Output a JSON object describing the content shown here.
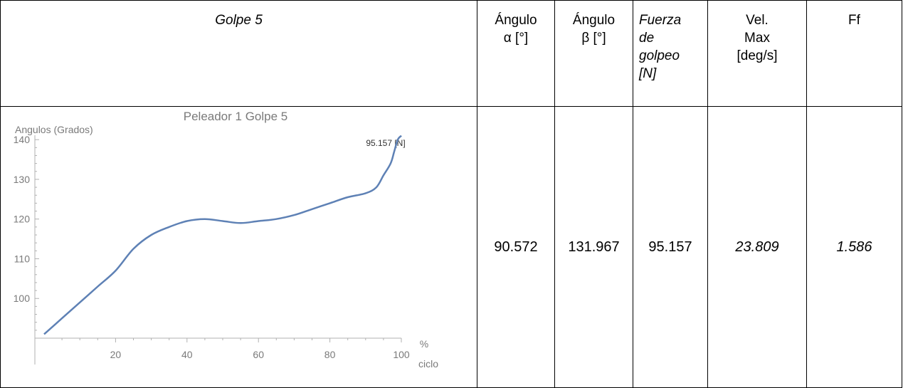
{
  "table": {
    "headers": {
      "golpe": "Golpe 5",
      "alpha_line1": "Ángulo",
      "alpha_line2": "α [°]",
      "beta_line1": "Ángulo",
      "beta_line2": "β [°]",
      "fuerza_line1": "Fuerza",
      "fuerza_line2": "de",
      "fuerza_line3": "golpeo",
      "fuerza_line4": "[N]",
      "vel_line1": "Vel.",
      "vel_line2": "Max",
      "vel_line3": "[deg/s]",
      "ff": "Ff"
    },
    "values": {
      "alpha": "90.572",
      "beta": "131.967",
      "fuerza": "95.157",
      "vel": "23.809",
      "ff": "1.586"
    }
  },
  "chart_data": {
    "type": "line",
    "title": "Peleador  1 Golpe 5",
    "ylabel": "Angulos (Grados)",
    "xlabel_top": "%",
    "xlabel_bottom": "ciclo",
    "annotation": "95.157 [N]",
    "xlim": [
      0,
      100
    ],
    "ylim": [
      90,
      142
    ],
    "xticks": [
      20,
      40,
      60,
      80,
      100
    ],
    "yticks": [
      100,
      110,
      120,
      130,
      140
    ],
    "line_color": "#5e81b5",
    "x": [
      0,
      5,
      10,
      15,
      20,
      25,
      30,
      35,
      40,
      45,
      50,
      55,
      60,
      65,
      70,
      75,
      80,
      85,
      90,
      93,
      95,
      97,
      98,
      99,
      100
    ],
    "y": [
      91,
      95,
      99,
      103,
      107,
      112.5,
      116,
      118,
      119.5,
      120,
      119.5,
      119,
      119.5,
      120,
      121,
      122.5,
      124,
      125.5,
      126.5,
      128,
      131,
      134,
      137,
      140,
      141
    ]
  }
}
